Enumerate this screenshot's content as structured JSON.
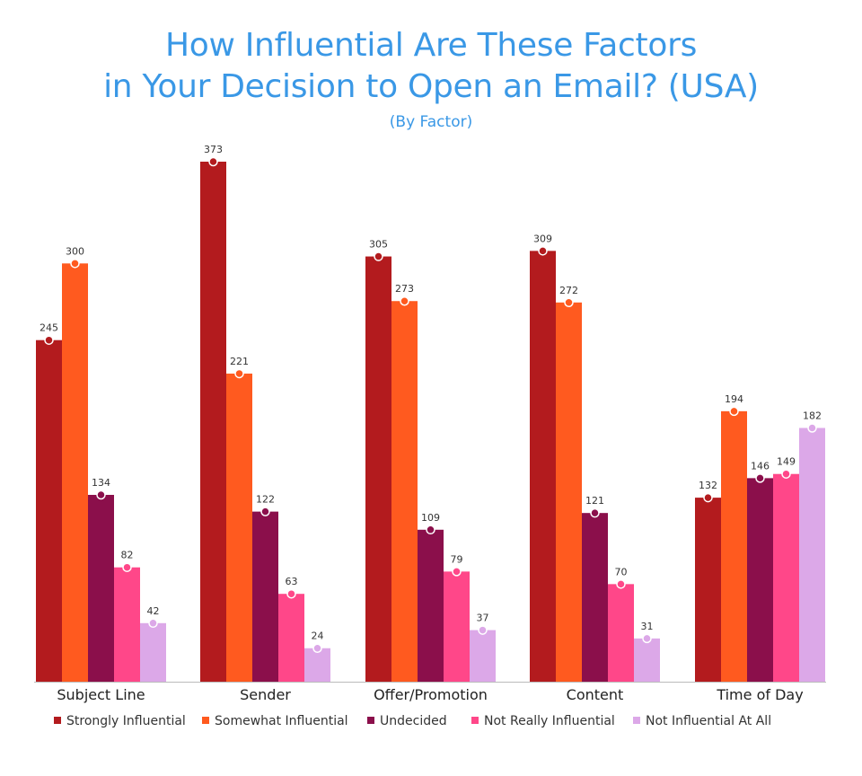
{
  "title_line1": "How Influential Are These Factors",
  "title_line2": "in Your Decision to Open an Email? (USA)",
  "subtitle": "(By Factor)",
  "chart_data": {
    "type": "bar",
    "title": "How Influential Are These Factors in Your Decision to Open an Email? (USA)",
    "subtitle": "(By Factor)",
    "categories": [
      "Subject Line",
      "Sender",
      "Offer/Promotion",
      "Content",
      "Time of Day"
    ],
    "series": [
      {
        "name": "Strongly Influential",
        "color": "#b31b1e",
        "values": [
          245,
          373,
          305,
          309,
          132
        ]
      },
      {
        "name": "Somewhat Influential",
        "color": "#ff5a1f",
        "values": [
          300,
          221,
          273,
          272,
          194
        ]
      },
      {
        "name": "Undecided",
        "color": "#8b0f4b",
        "values": [
          134,
          122,
          109,
          121,
          146
        ]
      },
      {
        "name": "Not Really Influential",
        "color": "#ff4789",
        "values": [
          82,
          63,
          79,
          70,
          149
        ]
      },
      {
        "name": "Not Influential At All",
        "color": "#dca8e8",
        "values": [
          42,
          24,
          37,
          31,
          182
        ]
      }
    ],
    "xlabel": "",
    "ylabel": "",
    "ylim": [
      0,
      373
    ],
    "grid": false,
    "legend_position": "bottom"
  }
}
